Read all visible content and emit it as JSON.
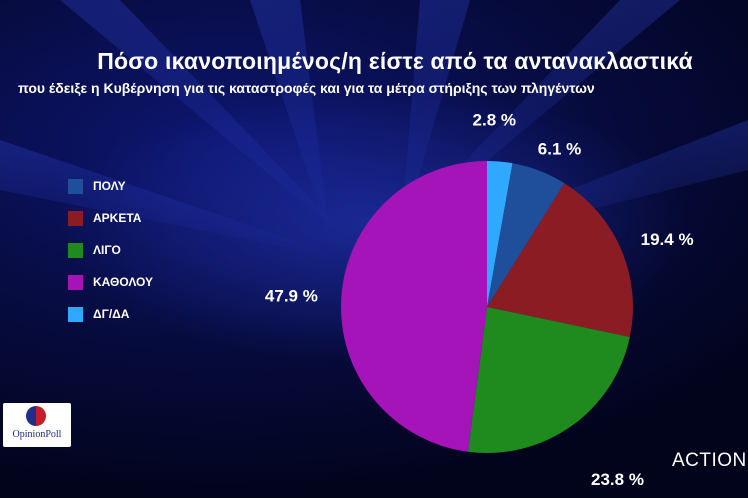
{
  "chart_data": {
    "type": "pie",
    "title": "Πόσο ικανοποιημένος/η είστε από τα αντανακλαστικά",
    "subtitle": "που έδειξε η Κυβέρνηση για τις καταστροφές και για τα μέτρα στήριξης των πληγέντων",
    "categories": [
      "ΠΟΛΥ",
      "ΑΡΚΕΤΑ",
      "ΛΙΓΟ",
      "ΚΑΘΟΛΟΥ",
      "ΔΓ/ΔΑ"
    ],
    "values": [
      6.1,
      19.4,
      23.8,
      47.9,
      2.8
    ],
    "value_labels": [
      "6.1 %",
      "19.4 %",
      "23.8 %",
      "47.9 %",
      "2.8 %"
    ],
    "colors": [
      "#1f4f9a",
      "#8c1c24",
      "#1f8a1e",
      "#a514b8",
      "#2fa8ff"
    ],
    "legend_position": "left",
    "start_angle": "top, clockwise"
  },
  "logo_text": "OpinionPoll",
  "brand": "ACTION"
}
